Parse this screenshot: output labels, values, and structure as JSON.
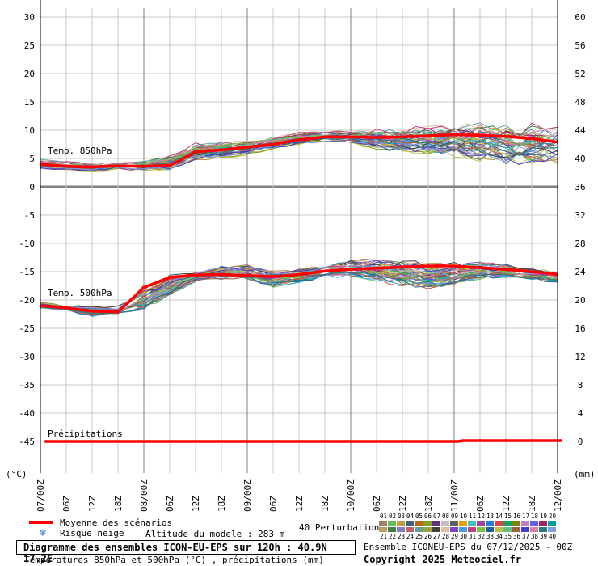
{
  "chart_data": {
    "type": "line",
    "title": "Diagramme des ensembles ICON-EU-EPS sur 120h : 40.9N 17.2E",
    "subtitle": "Températures 850hPa et 500hPa (°C) , précipitations (mm)",
    "left_unit": "(°C)",
    "right_unit": "(mm)",
    "left_axis": {
      "ylim": [
        -50,
        30
      ],
      "ticks": [
        30,
        25,
        20,
        15,
        10,
        5,
        0,
        -5,
        -10,
        -15,
        -20,
        -25,
        -30,
        -35,
        -40,
        -45
      ]
    },
    "right_axis": {
      "ticks": [
        60,
        56,
        52,
        48,
        44,
        40,
        36,
        32,
        28,
        24,
        20,
        16,
        12,
        8,
        4,
        0
      ]
    },
    "x_ticks": [
      "07/00Z",
      "06Z",
      "12Z",
      "18Z",
      "08/00Z",
      "06Z",
      "12Z",
      "18Z",
      "09/00Z",
      "06Z",
      "12Z",
      "18Z",
      "10/00Z",
      "06Z",
      "12Z",
      "18Z",
      "11/00Z",
      "06Z",
      "12Z",
      "18Z",
      "12/00Z"
    ],
    "x_hours": [
      0,
      6,
      12,
      18,
      24,
      30,
      36,
      42,
      48,
      54,
      60,
      66,
      72,
      78,
      84,
      90,
      96,
      102,
      108,
      114,
      120
    ],
    "grid": true,
    "panel_labels": [
      "Temp. 850hPa",
      "Temp. 500hPa",
      "Précipitations"
    ],
    "series": [
      {
        "name": "Moyenne des scénarios",
        "variable": "Temp. 850hPa",
        "color": "#ff0000",
        "x": [
          0,
          6,
          12,
          18,
          24,
          30,
          32,
          36,
          42,
          48,
          54,
          60,
          66,
          72,
          78,
          84,
          90,
          96,
          102,
          108,
          114,
          120
        ],
        "values": [
          4.0,
          3.6,
          3.5,
          3.7,
          3.6,
          3.8,
          4.5,
          6.2,
          6.5,
          7.0,
          7.5,
          8.3,
          8.8,
          8.8,
          8.7,
          8.8,
          9.0,
          9.2,
          9.1,
          8.9,
          8.5,
          7.9
        ]
      },
      {
        "name": "Moyenne des scénarios",
        "variable": "Temp. 500hPa",
        "color": "#ff0000",
        "x": [
          0,
          6,
          12,
          18,
          21,
          24,
          30,
          36,
          42,
          48,
          54,
          60,
          66,
          72,
          78,
          84,
          90,
          96,
          102,
          108,
          114,
          120
        ],
        "values": [
          -21.0,
          -21.4,
          -22.0,
          -22.1,
          -20.0,
          -17.8,
          -16.0,
          -15.6,
          -15.5,
          -15.7,
          -15.9,
          -15.5,
          -14.9,
          -14.6,
          -14.4,
          -14.2,
          -14.0,
          -14.0,
          -14.3,
          -14.6,
          -15.0,
          -15.5
        ]
      },
      {
        "name": "Moyenne des scénarios",
        "variable": "Précipitations",
        "color": "#ff0000",
        "x": [
          0,
          18,
          19,
          96,
          97,
          120
        ],
        "values": [
          0.0,
          0.0,
          0.0,
          0.0,
          0.1,
          0.1
        ]
      }
    ],
    "ensemble_spread_850": {
      "x": [
        0,
        6,
        12,
        18,
        24,
        30,
        36,
        42,
        48,
        54,
        60,
        66,
        72,
        78,
        84,
        90,
        96,
        102,
        108,
        114,
        120
      ],
      "min": [
        3.0,
        2.8,
        2.5,
        2.9,
        2.8,
        2.8,
        4.5,
        4.8,
        5.5,
        6.5,
        7.3,
        7.8,
        7.5,
        6.5,
        5.8,
        5.5,
        5.0,
        4.3,
        3.5,
        3.6,
        3.6
      ],
      "max": [
        5.0,
        4.6,
        4.3,
        4.8,
        4.6,
        5.7,
        7.9,
        8.2,
        8.4,
        9.0,
        9.7,
        10.0,
        10.2,
        10.3,
        10.6,
        11.0,
        11.5,
        11.8,
        11.6,
        11.4,
        11.4
      ]
    },
    "ensemble_spread_500": {
      "x": [
        0,
        6,
        12,
        18,
        24,
        30,
        36,
        42,
        48,
        54,
        60,
        66,
        72,
        78,
        84,
        90,
        96,
        102,
        108,
        114,
        120
      ],
      "min": [
        -21.5,
        -22.0,
        -23.0,
        -22.8,
        -22.0,
        -19.5,
        -16.8,
        -16.5,
        -16.6,
        -18.0,
        -17.0,
        -16.3,
        -16.0,
        -17.2,
        -17.8,
        -18.5,
        -18.0,
        -16.5,
        -16.2,
        -16.5,
        -17.2
      ],
      "max": [
        -20.3,
        -20.8,
        -21.0,
        -21.0,
        -17.2,
        -15.5,
        -15.0,
        -13.8,
        -13.6,
        -14.6,
        -14.4,
        -13.6,
        -12.7,
        -12.4,
        -12.8,
        -12.9,
        -13.2,
        -13.0,
        -13.6,
        -14.2,
        -14.7
      ]
    },
    "legend": {
      "mean_label": "Moyenne des scénarios",
      "snow_label": "Risque neige",
      "altitude_label": "Altitude du modele : 283 m",
      "perturbations_label": "40 Perturbations",
      "member_numbers_top": [
        "01",
        "02",
        "03",
        "04",
        "05",
        "06",
        "07",
        "08",
        "09",
        "10",
        "11",
        "12",
        "13",
        "14",
        "15",
        "16",
        "17",
        "18",
        "19",
        "20"
      ],
      "member_numbers_bottom": [
        "21",
        "22",
        "23",
        "24",
        "25",
        "26",
        "27",
        "28",
        "29",
        "30",
        "31",
        "32",
        "33",
        "34",
        "35",
        "36",
        "37",
        "38",
        "39",
        "40"
      ],
      "member_colors_top": [
        "#a08060",
        "#60c060",
        "#c0a040",
        "#406080",
        "#c06020",
        "#80a020",
        "#603080",
        "#c0c0c0",
        "#606060",
        "#e0a000",
        "#40c0c0",
        "#a040a0",
        "#2080e0",
        "#e04040",
        "#20a060",
        "#808000",
        "#c080c0",
        "#6060e0",
        "#a02060",
        "#00a0a0"
      ],
      "member_colors_bottom": [
        "#c0a060",
        "#408040",
        "#8080c0",
        "#c06060",
        "#60a0a0",
        "#a0a040",
        "#404040",
        "#e0c0a0",
        "#8040c0",
        "#40a0e0",
        "#c04080",
        "#80c040",
        "#2060a0",
        "#c0c040",
        "#60c080",
        "#a06040",
        "#4040c0",
        "#e080a0",
        "#208080",
        "#80a0e0"
      ]
    },
    "run_info": "Ensemble ICONEU-EPS du 07/12/2025 - 00Z",
    "copyright": "Copyright 2025 Meteociel.fr"
  }
}
